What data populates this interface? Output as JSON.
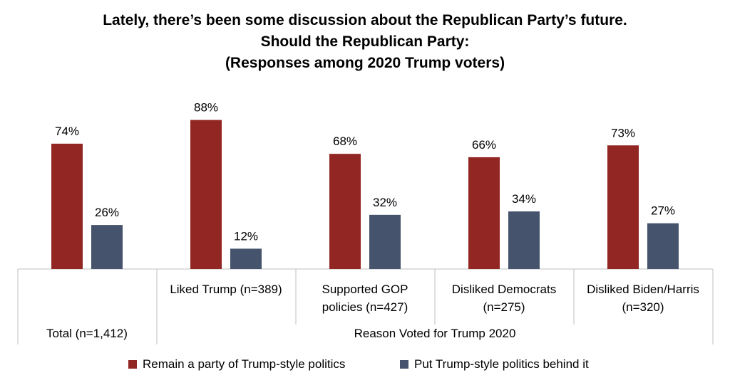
{
  "title_lines": [
    "Lately, there’s been some discussion about the Republican Party’s future.",
    "Should the Republican Party:",
    "(Responses among 2020 Trump voters)"
  ],
  "colors": {
    "remain": "#922622",
    "put_behind": "#45546c",
    "axis": "#bfbfbf"
  },
  "chart_data": {
    "type": "bar",
    "title": "Lately, there’s been some discussion about the Republican Party’s future. Should the Republican Party: (Responses among 2020 Trump voters)",
    "categories": [
      [
        "Total (n=1,412)"
      ],
      [
        "Liked Trump (n=389)"
      ],
      [
        "Supported GOP",
        "policies (n=427)"
      ],
      [
        "Disliked Democrats",
        "(n=275)"
      ],
      [
        "Disliked Biden/Harris",
        "(n=320)"
      ]
    ],
    "group_label": "Reason Voted for Trump 2020",
    "series": [
      {
        "name": "Remain a party of Trump-style politics",
        "values": [
          74,
          88,
          68,
          66,
          73
        ]
      },
      {
        "name": "Put Trump-style politics behind it",
        "values": [
          26,
          12,
          32,
          34,
          27
        ]
      }
    ],
    "value_suffix": "%",
    "ylim": [
      0,
      100
    ],
    "grid": false,
    "legend_position": "bottom"
  }
}
